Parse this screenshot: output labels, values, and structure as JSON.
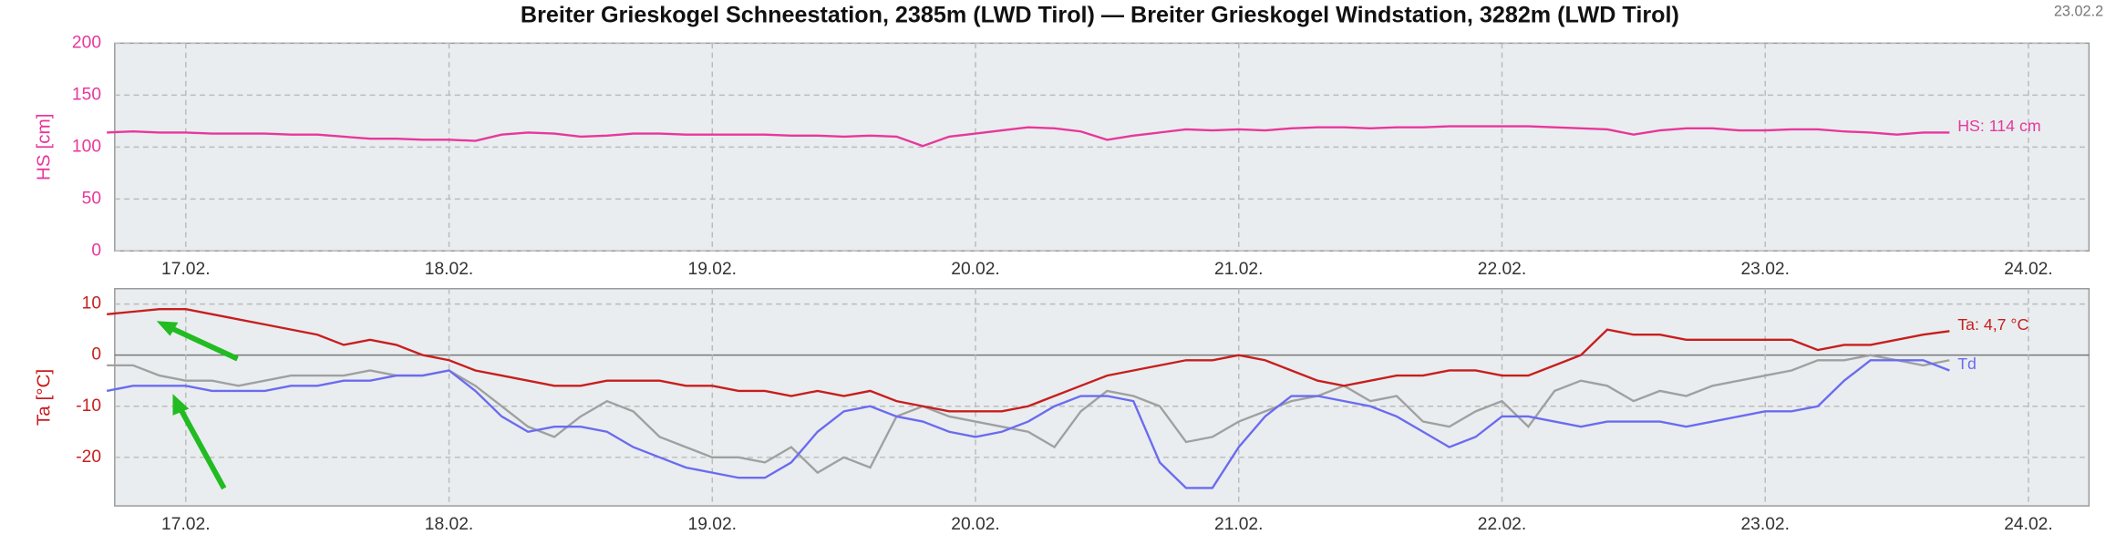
{
  "chart_data": [
    {
      "type": "line",
      "title": "Breiter Grieskogel Schneestation, 2385m (LWD Tirol) — Breiter Grieskogel Windstation, 3282m (LWD Tirol)",
      "corner_text": "23.02.2",
      "y_label": "HS [cm]",
      "y_label_color": "#e8379c",
      "grid": true,
      "xlim": [
        16.73,
        24.23
      ],
      "ylim": [
        0,
        200
      ],
      "yticks": [
        0,
        50,
        100,
        150,
        200
      ],
      "xticks": [
        {
          "value": 17,
          "label": "17.02."
        },
        {
          "value": 18,
          "label": "18.02."
        },
        {
          "value": 19,
          "label": "19.02."
        },
        {
          "value": 20,
          "label": "20.02."
        },
        {
          "value": 21,
          "label": "21.02."
        },
        {
          "value": 22,
          "label": "22.02."
        },
        {
          "value": 23,
          "label": "23.02."
        },
        {
          "value": 24,
          "label": "24.02."
        }
      ],
      "x": [
        16.7,
        16.8,
        16.9,
        17.0,
        17.1,
        17.2,
        17.3,
        17.4,
        17.5,
        17.6,
        17.7,
        17.8,
        17.9,
        18.0,
        18.1,
        18.2,
        18.3,
        18.4,
        18.5,
        18.6,
        18.7,
        18.8,
        18.9,
        19.0,
        19.1,
        19.2,
        19.3,
        19.4,
        19.5,
        19.6,
        19.7,
        19.8,
        19.9,
        20.0,
        20.1,
        20.2,
        20.3,
        20.4,
        20.5,
        20.6,
        20.7,
        20.8,
        20.9,
        21.0,
        21.1,
        21.2,
        21.3,
        21.4,
        21.5,
        21.6,
        21.7,
        21.8,
        21.9,
        22.0,
        22.1,
        22.2,
        22.3,
        22.4,
        22.5,
        22.6,
        22.7,
        22.8,
        22.9,
        23.0,
        23.1,
        23.2,
        23.3,
        23.4,
        23.5,
        23.6,
        23.7
      ],
      "series": [
        {
          "label": "HS: 114 cm",
          "color": "#e8379c",
          "values": [
            114,
            115,
            114,
            114,
            113,
            113,
            113,
            112,
            112,
            110,
            108,
            108,
            107,
            107,
            106,
            112,
            114,
            113,
            110,
            111,
            113,
            113,
            112,
            112,
            112,
            112,
            111,
            111,
            110,
            111,
            110,
            101,
            110,
            113,
            116,
            119,
            118,
            115,
            107,
            111,
            114,
            117,
            116,
            117,
            116,
            118,
            119,
            119,
            118,
            119,
            119,
            120,
            120,
            120,
            120,
            119,
            118,
            117,
            112,
            116,
            118,
            118,
            116,
            116,
            117,
            117,
            115,
            114,
            112,
            114,
            114
          ]
        }
      ]
    },
    {
      "type": "line",
      "y_label": "Ta [°C]",
      "y_label_color": "#c81e1e",
      "grid": true,
      "zero_line": true,
      "xlim": [
        16.73,
        24.23
      ],
      "ylim": [
        -29.5,
        13
      ],
      "yticks": [
        -20,
        -10,
        0,
        10
      ],
      "xticks": [
        {
          "value": 17,
          "label": "17.02."
        },
        {
          "value": 18,
          "label": "18.02."
        },
        {
          "value": 19,
          "label": "19.02."
        },
        {
          "value": 20,
          "label": "20.02."
        },
        {
          "value": 21,
          "label": "21.02."
        },
        {
          "value": 22,
          "label": "22.02."
        },
        {
          "value": 23,
          "label": "23.02."
        },
        {
          "value": 24,
          "label": "24.02."
        }
      ],
      "x": [
        16.7,
        16.8,
        16.9,
        17.0,
        17.1,
        17.2,
        17.3,
        17.4,
        17.5,
        17.6,
        17.7,
        17.8,
        17.9,
        18.0,
        18.1,
        18.2,
        18.3,
        18.4,
        18.5,
        18.6,
        18.7,
        18.8,
        18.9,
        19.0,
        19.1,
        19.2,
        19.3,
        19.4,
        19.5,
        19.6,
        19.7,
        19.8,
        19.9,
        20.0,
        20.1,
        20.2,
        20.3,
        20.4,
        20.5,
        20.6,
        20.7,
        20.8,
        20.9,
        21.0,
        21.1,
        21.2,
        21.3,
        21.4,
        21.5,
        21.6,
        21.7,
        21.8,
        21.9,
        22.0,
        22.1,
        22.2,
        22.3,
        22.4,
        22.5,
        22.6,
        22.7,
        22.8,
        22.9,
        23.0,
        23.1,
        23.2,
        23.3,
        23.4,
        23.5,
        23.6,
        23.7
      ],
      "series": [
        {
          "color": "#a0a0a0",
          "values": [
            -2,
            -2,
            -4,
            -5,
            -5,
            -6,
            -5,
            -4,
            -4,
            -4,
            -3,
            -4,
            -4,
            -3,
            -6,
            -10,
            -14,
            -16,
            -12,
            -9,
            -11,
            -16,
            -18,
            -20,
            -20,
            -21,
            -18,
            -23,
            -20,
            -22,
            -12,
            -10,
            -12,
            -13,
            -14,
            -15,
            -18,
            -11,
            -7,
            -8,
            -10,
            -17,
            -16,
            -13,
            -11,
            -9,
            -8,
            -6,
            -9,
            -8,
            -13,
            -14,
            -11,
            -9,
            -14,
            -7,
            -5,
            -6,
            -9,
            -7,
            -8,
            -6,
            -5,
            -4,
            -3,
            -1,
            -1,
            0,
            -1,
            -2,
            -1
          ]
        },
        {
          "label": "Td",
          "color": "#6b6bf0",
          "values": [
            -7,
            -6,
            -6,
            -6,
            -7,
            -7,
            -7,
            -6,
            -6,
            -5,
            -5,
            -4,
            -4,
            -3,
            -7,
            -12,
            -15,
            -14,
            -14,
            -15,
            -18,
            -20,
            -22,
            -23,
            -24,
            -24,
            -21,
            -15,
            -11,
            -10,
            -12,
            -13,
            -15,
            -16,
            -15,
            -13,
            -10,
            -8,
            -8,
            -9,
            -21,
            -26,
            -26,
            -18,
            -12,
            -8,
            -8,
            -9,
            -10,
            -12,
            -15,
            -18,
            -16,
            -12,
            -12,
            -13,
            -14,
            -13,
            -13,
            -13,
            -14,
            -13,
            -12,
            -11,
            -11,
            -10,
            -5,
            -1,
            -1,
            -1,
            -3
          ]
        },
        {
          "label": "Ta: 4,7 °C",
          "color": "#c81e1e",
          "values": [
            8,
            8.5,
            9,
            9,
            8,
            7,
            6,
            5,
            4,
            2,
            3,
            2,
            0,
            -1,
            -3,
            -4,
            -5,
            -6,
            -6,
            -5,
            -5,
            -5,
            -6,
            -6,
            -7,
            -7,
            -8,
            -7,
            -8,
            -7,
            -9,
            -10,
            -11,
            -11,
            -11,
            -10,
            -8,
            -6,
            -4,
            -3,
            -2,
            -1,
            -1,
            0,
            -1,
            -3,
            -5,
            -6,
            -5,
            -4,
            -4,
            -3,
            -3,
            -4,
            -4,
            -2,
            0,
            5,
            4,
            4,
            3,
            3,
            3,
            3,
            3,
            1,
            2,
            2,
            3,
            4,
            4.7
          ]
        }
      ]
    }
  ]
}
